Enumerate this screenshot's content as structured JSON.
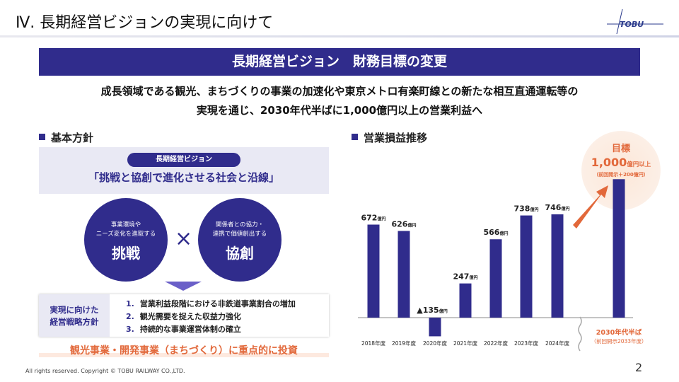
{
  "header": {
    "title": "Ⅳ.  長期経営ビジョンの実現に向けて",
    "logo": "TOBU"
  },
  "banner": "長期経営ビジョン　財務目標の変更",
  "lead": [
    "成長領域である観光、まちづくりの事業の加速化や東京メトロ有楽町線との新たな相互直通運転等の",
    "実現を通じ、2030年代半ばに1,000億円以上の営業利益へ"
  ],
  "policy": {
    "heading": "基本方針",
    "vision_pill": "長期経営ビジョン",
    "slogan": "「挑戦と協創で進化させる社会と沿線」",
    "circles": [
      {
        "sub1": "事業環境や",
        "sub2": "ニーズ変化を進取する",
        "main": "挑戦"
      },
      {
        "sub1": "関係者との協力・",
        "sub2": "連携で価値創出する",
        "main": "協創"
      }
    ],
    "times": "×",
    "strategy_label": [
      "実現に向けた",
      "経営戦略方針"
    ],
    "strategies": [
      {
        "n": "1.",
        "t": "営業利益段階における非鉄道事業割合の増加"
      },
      {
        "n": "2.",
        "t": "観光需要を捉えた収益力強化"
      },
      {
        "n": "3.",
        "t": "持続的な事業運営体制の確立"
      }
    ],
    "invest": "観光事業・開発事業（まちづくり）に重点的に投資"
  },
  "chart_data": {
    "type": "bar",
    "title": "営業損益推移",
    "categories": [
      "2018年度",
      "2019年度",
      "2020年度",
      "2021年度",
      "2022年度",
      "2023年度",
      "2024年度",
      "2030年代半ば"
    ],
    "values": [
      672,
      626,
      -135,
      247,
      566,
      738,
      746,
      1000
    ],
    "labels": [
      "672",
      "626",
      "▲135",
      "247",
      "566",
      "738",
      "746",
      ""
    ],
    "unit": "億円",
    "bar_color": "#302c8c",
    "target": {
      "title": "目標",
      "value": "1,000",
      "unit": "億円以上",
      "note": "（前回開示＋200億円）",
      "period": "2030年代半ば",
      "period_note": "（前回開示2033年度）",
      "color": "#e2683a"
    }
  },
  "footer": {
    "copyright": "All rights reserved. Copyright © TOBU RAILWAY CO.,LTD.",
    "page": "2"
  }
}
